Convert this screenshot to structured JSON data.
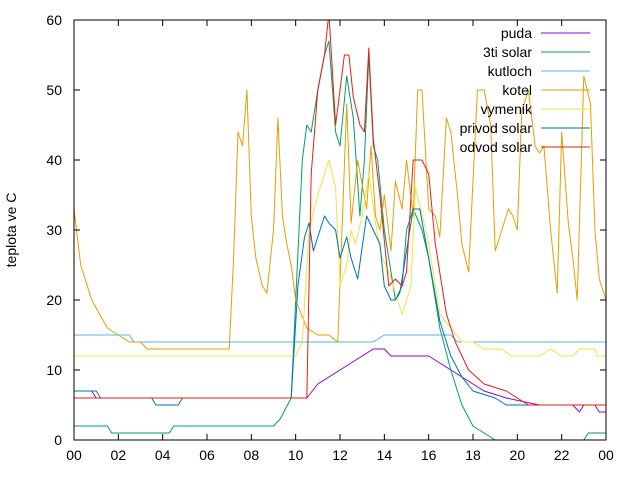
{
  "chart_data": {
    "type": "line",
    "ylabel": "teplota ve C",
    "xlabel": "",
    "title": "",
    "xlim": [
      0,
      24
    ],
    "ylim": [
      0,
      60
    ],
    "x_ticks": [
      "00",
      "02",
      "04",
      "06",
      "08",
      "10",
      "12",
      "14",
      "16",
      "18",
      "20",
      "22",
      "00"
    ],
    "y_ticks": [
      "0",
      "10",
      "20",
      "30",
      "40",
      "50",
      "60"
    ],
    "legend_position": "top-right",
    "grid": false,
    "series": [
      {
        "name": "puda",
        "color": "#9400d3",
        "points": [
          [
            0,
            7
          ],
          [
            0.8,
            7
          ],
          [
            1,
            6
          ],
          [
            10,
            6
          ],
          [
            10.5,
            6
          ],
          [
            11,
            8
          ],
          [
            11.5,
            9
          ],
          [
            12,
            10
          ],
          [
            13,
            12
          ],
          [
            13.5,
            13
          ],
          [
            14,
            13
          ],
          [
            14.3,
            12
          ],
          [
            15,
            12
          ],
          [
            16,
            12
          ],
          [
            16.5,
            11
          ],
          [
            17.5,
            9
          ],
          [
            18,
            8
          ],
          [
            18.5,
            7
          ],
          [
            19.5,
            6
          ],
          [
            21,
            5
          ],
          [
            22.5,
            5
          ],
          [
            22.8,
            4
          ],
          [
            23,
            5
          ],
          [
            23.5,
            5
          ],
          [
            23.7,
            4
          ],
          [
            24,
            4
          ]
        ]
      },
      {
        "name": "3ti solar",
        "color": "#009e73",
        "points": [
          [
            0,
            2
          ],
          [
            1.5,
            2
          ],
          [
            1.7,
            1
          ],
          [
            4.3,
            1
          ],
          [
            4.5,
            2
          ],
          [
            9,
            2
          ],
          [
            9.3,
            3
          ],
          [
            9.8,
            6
          ],
          [
            10,
            20
          ],
          [
            10.3,
            40
          ],
          [
            10.5,
            45
          ],
          [
            10.7,
            44
          ],
          [
            11,
            50
          ],
          [
            11.3,
            55
          ],
          [
            11.5,
            57
          ],
          [
            11.8,
            44
          ],
          [
            12,
            42
          ],
          [
            12.3,
            52
          ],
          [
            12.6,
            46
          ],
          [
            12.9,
            32
          ],
          [
            13.1,
            40
          ],
          [
            13.3,
            55
          ],
          [
            13.5,
            42
          ],
          [
            13.7,
            40
          ],
          [
            14,
            30
          ],
          [
            14.3,
            24
          ],
          [
            14.5,
            20
          ],
          [
            14.8,
            22
          ],
          [
            15,
            30
          ],
          [
            15.3,
            33
          ],
          [
            15.7,
            30
          ],
          [
            16,
            26
          ],
          [
            16.5,
            16
          ],
          [
            17,
            10
          ],
          [
            17.5,
            5
          ],
          [
            18,
            2
          ],
          [
            18.5,
            1
          ],
          [
            19,
            0
          ],
          [
            23,
            0
          ],
          [
            23.2,
            1
          ],
          [
            24,
            1
          ]
        ]
      },
      {
        "name": "kutloch",
        "color": "#56b4e9",
        "points": [
          [
            0,
            15
          ],
          [
            2.5,
            15
          ],
          [
            2.7,
            14
          ],
          [
            13.5,
            14
          ],
          [
            14,
            15
          ],
          [
            17,
            15
          ],
          [
            17.3,
            14
          ],
          [
            24,
            14
          ]
        ]
      },
      {
        "name": "kotel",
        "color": "#e69f00",
        "points": [
          [
            0,
            33
          ],
          [
            0.3,
            25
          ],
          [
            0.8,
            20
          ],
          [
            1.5,
            16
          ],
          [
            2,
            15
          ],
          [
            2.5,
            14
          ],
          [
            3,
            14
          ],
          [
            3.3,
            13
          ],
          [
            7,
            13
          ],
          [
            7.2,
            26
          ],
          [
            7.4,
            44
          ],
          [
            7.6,
            42
          ],
          [
            7.8,
            50
          ],
          [
            8,
            32
          ],
          [
            8.2,
            26
          ],
          [
            8.5,
            22
          ],
          [
            8.7,
            21
          ],
          [
            9,
            30
          ],
          [
            9.2,
            46
          ],
          [
            9.4,
            32
          ],
          [
            9.6,
            28
          ],
          [
            9.8,
            25
          ],
          [
            10,
            20
          ],
          [
            10.5,
            16
          ],
          [
            11,
            15
          ],
          [
            11.5,
            15
          ],
          [
            11.9,
            14
          ],
          [
            12.3,
            48
          ],
          [
            12.5,
            31
          ],
          [
            12.8,
            40
          ],
          [
            13.2,
            33
          ],
          [
            13.4,
            42
          ],
          [
            13.6,
            32
          ],
          [
            13.8,
            30
          ],
          [
            14,
            35
          ],
          [
            14.3,
            27
          ],
          [
            14.5,
            37
          ],
          [
            14.8,
            33
          ],
          [
            15,
            40
          ],
          [
            15.3,
            32
          ],
          [
            15.5,
            50
          ],
          [
            15.7,
            50
          ],
          [
            16,
            33
          ],
          [
            16.3,
            32
          ],
          [
            16.5,
            29
          ],
          [
            16.8,
            46
          ],
          [
            17,
            44
          ],
          [
            17.3,
            35
          ],
          [
            17.5,
            28
          ],
          [
            17.8,
            24
          ],
          [
            18.2,
            50
          ],
          [
            18.5,
            50
          ],
          [
            18.8,
            45
          ],
          [
            19,
            27
          ],
          [
            19.3,
            30
          ],
          [
            19.6,
            33
          ],
          [
            19.8,
            32
          ],
          [
            20,
            30
          ],
          [
            20.2,
            47
          ],
          [
            20.5,
            50
          ],
          [
            20.8,
            42
          ],
          [
            21,
            41
          ],
          [
            21.2,
            42
          ],
          [
            21.5,
            30
          ],
          [
            21.8,
            21
          ],
          [
            22,
            44
          ],
          [
            22.3,
            31
          ],
          [
            22.5,
            26
          ],
          [
            22.7,
            20
          ],
          [
            23,
            52
          ],
          [
            23.3,
            48
          ],
          [
            23.5,
            30
          ],
          [
            23.7,
            23
          ],
          [
            24,
            20
          ]
        ]
      },
      {
        "name": "vymenik",
        "color": "#f0e442",
        "points": [
          [
            0,
            12
          ],
          [
            10,
            12
          ],
          [
            10.3,
            14
          ],
          [
            10.6,
            30
          ],
          [
            11,
            35
          ],
          [
            11.3,
            38
          ],
          [
            11.5,
            40
          ],
          [
            11.8,
            36
          ],
          [
            12,
            22
          ],
          [
            12.3,
            25
          ],
          [
            12.5,
            30
          ],
          [
            12.7,
            28
          ],
          [
            13,
            32
          ],
          [
            13.3,
            38
          ],
          [
            13.6,
            31
          ],
          [
            13.9,
            26
          ],
          [
            14.2,
            24
          ],
          [
            14.5,
            21
          ],
          [
            14.8,
            18
          ],
          [
            15.2,
            22
          ],
          [
            15.4,
            36
          ],
          [
            15.8,
            31
          ],
          [
            16,
            28
          ],
          [
            16.5,
            18
          ],
          [
            17,
            16
          ],
          [
            17.5,
            14
          ],
          [
            18,
            14
          ],
          [
            18.5,
            13
          ],
          [
            19.3,
            13
          ],
          [
            19.7,
            12
          ],
          [
            21,
            12
          ],
          [
            21.5,
            13
          ],
          [
            22,
            12
          ],
          [
            22.5,
            12
          ],
          [
            22.8,
            13
          ],
          [
            23.5,
            13
          ],
          [
            23.6,
            12
          ],
          [
            24,
            12
          ]
        ]
      },
      {
        "name": "privod solar",
        "color": "#0072b2",
        "points": [
          [
            0,
            7
          ],
          [
            1,
            7
          ],
          [
            1.2,
            6
          ],
          [
            3.5,
            6
          ],
          [
            3.7,
            5
          ],
          [
            4.7,
            5
          ],
          [
            4.9,
            6
          ],
          [
            9.8,
            6
          ],
          [
            10.1,
            22
          ],
          [
            10.4,
            29
          ],
          [
            10.6,
            31
          ],
          [
            10.8,
            27
          ],
          [
            11,
            29
          ],
          [
            11.3,
            32
          ],
          [
            11.5,
            31
          ],
          [
            11.8,
            30
          ],
          [
            12,
            26
          ],
          [
            12.3,
            29
          ],
          [
            12.5,
            26
          ],
          [
            12.8,
            23
          ],
          [
            13.2,
            32
          ],
          [
            13.5,
            30
          ],
          [
            13.8,
            28
          ],
          [
            14,
            22
          ],
          [
            14.3,
            20
          ],
          [
            14.5,
            20
          ],
          [
            14.7,
            21
          ],
          [
            15,
            27
          ],
          [
            15.3,
            33
          ],
          [
            15.6,
            33
          ],
          [
            16,
            26
          ],
          [
            16.5,
            17
          ],
          [
            17,
            12
          ],
          [
            17.5,
            9
          ],
          [
            18,
            7
          ],
          [
            19,
            6
          ],
          [
            19.5,
            5
          ],
          [
            24,
            5
          ]
        ]
      },
      {
        "name": "odvod solar",
        "color": "#e51e10",
        "points": [
          [
            0,
            6
          ],
          [
            10.5,
            6
          ],
          [
            10.7,
            38
          ],
          [
            11,
            50
          ],
          [
            11.3,
            55
          ],
          [
            11.5,
            61
          ],
          [
            11.8,
            45
          ],
          [
            12,
            50
          ],
          [
            12.2,
            55
          ],
          [
            12.4,
            55
          ],
          [
            12.6,
            49
          ],
          [
            12.9,
            45
          ],
          [
            13.1,
            44
          ],
          [
            13.3,
            56
          ],
          [
            13.5,
            43
          ],
          [
            13.8,
            35
          ],
          [
            14.2,
            22
          ],
          [
            14.5,
            23
          ],
          [
            14.8,
            22
          ],
          [
            15,
            24
          ],
          [
            15.3,
            40
          ],
          [
            15.7,
            40
          ],
          [
            16,
            38
          ],
          [
            16.3,
            28
          ],
          [
            16.8,
            18
          ],
          [
            17.2,
            14
          ],
          [
            17.8,
            10
          ],
          [
            18.5,
            8
          ],
          [
            19.5,
            7
          ],
          [
            20,
            6
          ],
          [
            20.5,
            5
          ],
          [
            24,
            5
          ]
        ]
      }
    ]
  }
}
